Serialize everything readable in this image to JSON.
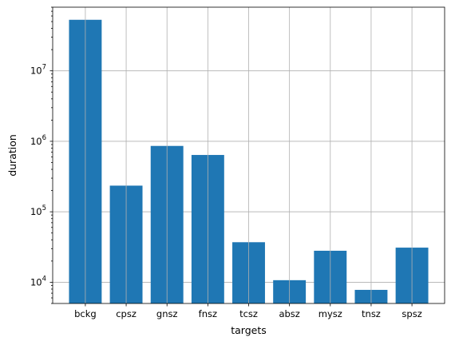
{
  "chart_data": {
    "type": "bar",
    "title": "",
    "xlabel": "targets",
    "ylabel": "duration",
    "categories": [
      "bckg",
      "cpsz",
      "gnsz",
      "fnsz",
      "tcsz",
      "absz",
      "mysz",
      "tnsz",
      "spsz"
    ],
    "values": [
      53000000,
      235000,
      860000,
      640000,
      37000,
      10700,
      28000,
      7800,
      31000
    ],
    "yscale": "log",
    "ylim": [
      5000,
      80000000
    ],
    "y_major_ticks": [
      {
        "value": 10000,
        "base": "10",
        "exp": "4"
      },
      {
        "value": 100000,
        "base": "10",
        "exp": "5"
      },
      {
        "value": 1000000,
        "base": "10",
        "exp": "6"
      },
      {
        "value": 10000000,
        "base": "10",
        "exp": "7"
      }
    ],
    "grid": true,
    "bar_color": "#1f77b4",
    "grid_color": "#b0b0b0"
  }
}
